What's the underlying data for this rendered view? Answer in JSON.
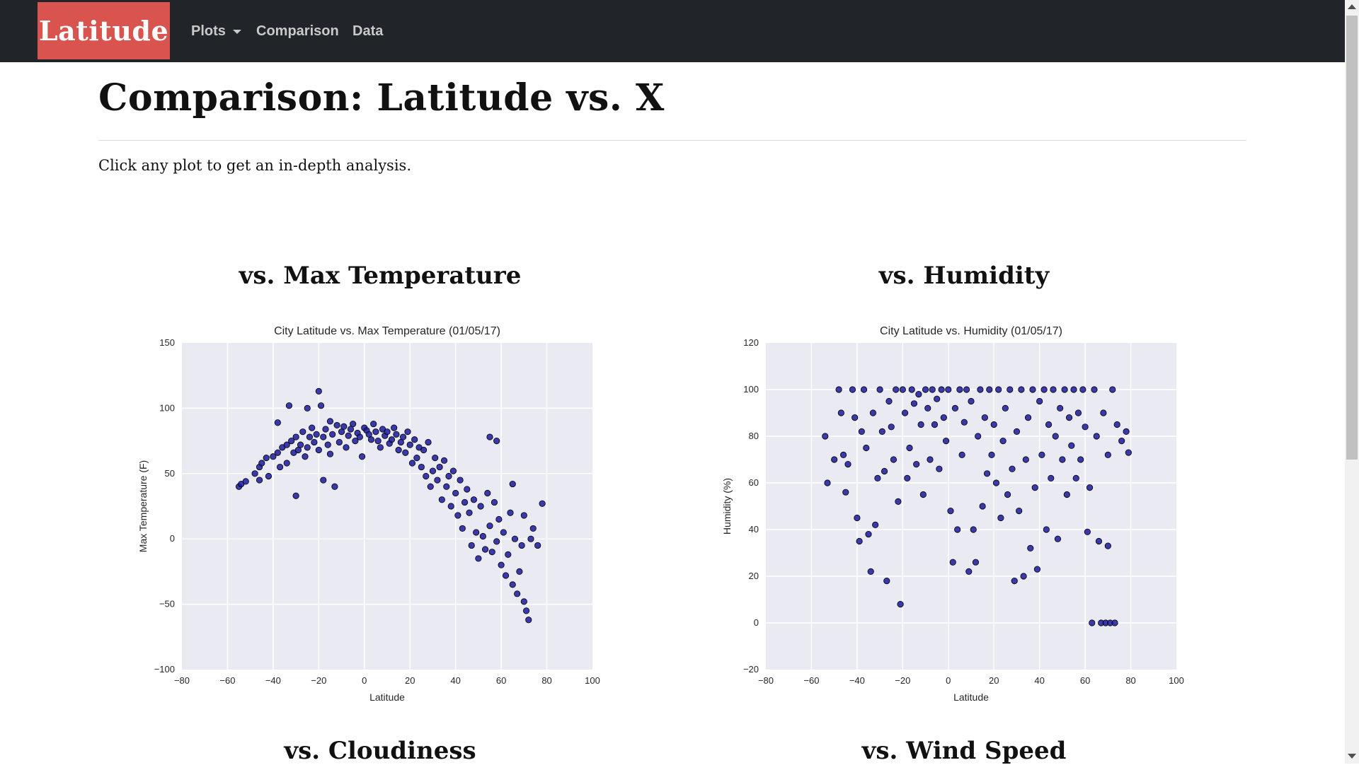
{
  "nav": {
    "brand": "Latitude",
    "items": [
      "Plots",
      "Comparison",
      "Data"
    ]
  },
  "page": {
    "title": "Comparison: Latitude vs. X",
    "intro": "Click any plot to get an in-depth analysis."
  },
  "headings": {
    "max_temp": "vs. Max Temperature",
    "humidity": "vs. Humidity",
    "cloudiness": "vs. Cloudiness",
    "wind_speed": "vs. Wind Speed"
  },
  "colors": {
    "navbar": "#212529",
    "brand": "#d9534f",
    "plot_bg": "#eaeaf2",
    "point": "#1a1aa0",
    "point_edge": "#000000"
  },
  "chart_data": [
    {
      "id": "temp",
      "type": "scatter",
      "title": "City Latitude vs. Max Temperature (01/05/17)",
      "xlabel": "Latitude",
      "ylabel": "Max Temperature (F)",
      "xlim": [
        -80,
        100
      ],
      "ylim": [
        -100,
        150
      ],
      "xticks": [
        -80,
        -60,
        -40,
        -20,
        0,
        20,
        40,
        60,
        80,
        100
      ],
      "yticks": [
        -100,
        -50,
        0,
        50,
        100,
        150
      ],
      "grid": true,
      "points": [
        [
          -55,
          40
        ],
        [
          -54,
          42
        ],
        [
          -52,
          44
        ],
        [
          -48,
          50
        ],
        [
          -46,
          55
        ],
        [
          -46,
          45
        ],
        [
          -45,
          58
        ],
        [
          -43,
          62
        ],
        [
          -42,
          48
        ],
        [
          -40,
          63
        ],
        [
          -38,
          66
        ],
        [
          -38,
          89
        ],
        [
          -37,
          55
        ],
        [
          -36,
          70
        ],
        [
          -34,
          72
        ],
        [
          -34,
          58
        ],
        [
          -33,
          102
        ],
        [
          -32,
          75
        ],
        [
          -31,
          66
        ],
        [
          -30,
          33
        ],
        [
          -30,
          78
        ],
        [
          -29,
          68
        ],
        [
          -28,
          72
        ],
        [
          -27,
          82
        ],
        [
          -26,
          63
        ],
        [
          -25,
          70
        ],
        [
          -25,
          100
        ],
        [
          -24,
          78
        ],
        [
          -23,
          85
        ],
        [
          -22,
          74
        ],
        [
          -21,
          80
        ],
        [
          -20,
          113
        ],
        [
          -20,
          68
        ],
        [
          -19,
          102
        ],
        [
          -18,
          45
        ],
        [
          -18,
          78
        ],
        [
          -17,
          84
        ],
        [
          -16,
          72
        ],
        [
          -15,
          90
        ],
        [
          -15,
          65
        ],
        [
          -14,
          80
        ],
        [
          -13,
          40
        ],
        [
          -12,
          87
        ],
        [
          -11,
          74
        ],
        [
          -10,
          82
        ],
        [
          -9,
          86
        ],
        [
          -8,
          70
        ],
        [
          -7,
          79
        ],
        [
          -6,
          84
        ],
        [
          -5,
          88
        ],
        [
          -4,
          75
        ],
        [
          -3,
          81
        ],
        [
          -2,
          78
        ],
        [
          -1,
          63
        ],
        [
          0,
          85
        ],
        [
          1,
          83
        ],
        [
          2,
          80
        ],
        [
          3,
          76
        ],
        [
          4,
          88
        ],
        [
          5,
          82
        ],
        [
          6,
          75
        ],
        [
          7,
          70
        ],
        [
          8,
          84
        ],
        [
          9,
          79
        ],
        [
          10,
          82
        ],
        [
          11,
          73
        ],
        [
          12,
          76
        ],
        [
          13,
          85
        ],
        [
          14,
          80
        ],
        [
          15,
          68
        ],
        [
          16,
          74
        ],
        [
          17,
          78
        ],
        [
          18,
          66
        ],
        [
          19,
          82
        ],
        [
          20,
          72
        ],
        [
          21,
          58
        ],
        [
          22,
          76
        ],
        [
          23,
          62
        ],
        [
          24,
          70
        ],
        [
          25,
          55
        ],
        [
          26,
          68
        ],
        [
          27,
          48
        ],
        [
          28,
          74
        ],
        [
          29,
          40
        ],
        [
          30,
          52
        ],
        [
          31,
          62
        ],
        [
          32,
          45
        ],
        [
          33,
          55
        ],
        [
          34,
          30
        ],
        [
          35,
          60
        ],
        [
          36,
          40
        ],
        [
          37,
          48
        ],
        [
          38,
          25
        ],
        [
          39,
          52
        ],
        [
          40,
          35
        ],
        [
          41,
          18
        ],
        [
          42,
          45
        ],
        [
          43,
          8
        ],
        [
          44,
          28
        ],
        [
          45,
          38
        ],
        [
          46,
          20
        ],
        [
          47,
          -5
        ],
        [
          48,
          30
        ],
        [
          49,
          5
        ],
        [
          50,
          -15
        ],
        [
          51,
          25
        ],
        [
          52,
          2
        ],
        [
          53,
          -8
        ],
        [
          54,
          35
        ],
        [
          55,
          10
        ],
        [
          55,
          78
        ],
        [
          56,
          -10
        ],
        [
          57,
          28
        ],
        [
          58,
          -2
        ],
        [
          58,
          75
        ],
        [
          59,
          15
        ],
        [
          60,
          -20
        ],
        [
          61,
          5
        ],
        [
          62,
          -28
        ],
        [
          63,
          -12
        ],
        [
          64,
          20
        ],
        [
          65,
          -35
        ],
        [
          65,
          42
        ],
        [
          66,
          0
        ],
        [
          67,
          -42
        ],
        [
          68,
          -25
        ],
        [
          69,
          -5
        ],
        [
          70,
          -48
        ],
        [
          70,
          18
        ],
        [
          71,
          -55
        ],
        [
          72,
          -62
        ],
        [
          73,
          0
        ],
        [
          74,
          8
        ],
        [
          76,
          -5
        ],
        [
          78,
          27
        ]
      ]
    },
    {
      "id": "humidity",
      "type": "scatter",
      "title": "City Latitude vs. Humidity (01/05/17)",
      "xlabel": "Latitude",
      "ylabel": "Humidity (%)",
      "xlim": [
        -80,
        100
      ],
      "ylim": [
        -20,
        120
      ],
      "xticks": [
        -80,
        -60,
        -40,
        -20,
        0,
        20,
        40,
        60,
        80,
        100
      ],
      "yticks": [
        -20,
        0,
        20,
        40,
        60,
        80,
        100,
        120
      ],
      "grid": true,
      "points": [
        [
          -54,
          80
        ],
        [
          -53,
          60
        ],
        [
          -50,
          70
        ],
        [
          -48,
          100
        ],
        [
          -47,
          90
        ],
        [
          -46,
          72
        ],
        [
          -45,
          56
        ],
        [
          -44,
          68
        ],
        [
          -42,
          100
        ],
        [
          -41,
          88
        ],
        [
          -40,
          45
        ],
        [
          -39,
          35
        ],
        [
          -38,
          82
        ],
        [
          -37,
          100
        ],
        [
          -36,
          75
        ],
        [
          -35,
          38
        ],
        [
          -34,
          22
        ],
        [
          -33,
          90
        ],
        [
          -32,
          42
        ],
        [
          -31,
          62
        ],
        [
          -30,
          100
        ],
        [
          -29,
          82
        ],
        [
          -28,
          65
        ],
        [
          -27,
          18
        ],
        [
          -26,
          95
        ],
        [
          -25,
          84
        ],
        [
          -24,
          70
        ],
        [
          -23,
          100
        ],
        [
          -22,
          52
        ],
        [
          -21,
          8
        ],
        [
          -20,
          100
        ],
        [
          -19,
          90
        ],
        [
          -18,
          62
        ],
        [
          -17,
          75
        ],
        [
          -16,
          100
        ],
        [
          -15,
          94
        ],
        [
          -14,
          68
        ],
        [
          -13,
          98
        ],
        [
          -12,
          85
        ],
        [
          -11,
          55
        ],
        [
          -10,
          100
        ],
        [
          -9,
          92
        ],
        [
          -8,
          70
        ],
        [
          -7,
          100
        ],
        [
          -6,
          85
        ],
        [
          -5,
          96
        ],
        [
          -4,
          66
        ],
        [
          -3,
          100
        ],
        [
          -2,
          88
        ],
        [
          -1,
          78
        ],
        [
          0,
          100
        ],
        [
          1,
          48
        ],
        [
          2,
          26
        ],
        [
          3,
          92
        ],
        [
          4,
          40
        ],
        [
          5,
          100
        ],
        [
          6,
          72
        ],
        [
          7,
          86
        ],
        [
          8,
          100
        ],
        [
          9,
          22
        ],
        [
          10,
          95
        ],
        [
          11,
          40
        ],
        [
          12,
          26
        ],
        [
          13,
          80
        ],
        [
          14,
          100
        ],
        [
          15,
          50
        ],
        [
          16,
          88
        ],
        [
          17,
          64
        ],
        [
          18,
          100
        ],
        [
          19,
          72
        ],
        [
          20,
          85
        ],
        [
          21,
          60
        ],
        [
          22,
          100
        ],
        [
          23,
          45
        ],
        [
          24,
          78
        ],
        [
          25,
          92
        ],
        [
          26,
          55
        ],
        [
          27,
          100
        ],
        [
          28,
          66
        ],
        [
          29,
          18
        ],
        [
          30,
          82
        ],
        [
          31,
          48
        ],
        [
          32,
          100
        ],
        [
          33,
          20
        ],
        [
          34,
          70
        ],
        [
          35,
          88
        ],
        [
          36,
          32
        ],
        [
          37,
          100
        ],
        [
          38,
          58
        ],
        [
          39,
          23
        ],
        [
          40,
          95
        ],
        [
          41,
          72
        ],
        [
          42,
          100
        ],
        [
          43,
          40
        ],
        [
          44,
          85
        ],
        [
          45,
          62
        ],
        [
          46,
          100
        ],
        [
          47,
          80
        ],
        [
          48,
          36
        ],
        [
          49,
          92
        ],
        [
          50,
          70
        ],
        [
          51,
          100
        ],
        [
          52,
          55
        ],
        [
          53,
          88
        ],
        [
          54,
          76
        ],
        [
          55,
          100
        ],
        [
          56,
          62
        ],
        [
          57,
          90
        ],
        [
          58,
          70
        ],
        [
          59,
          100
        ],
        [
          60,
          84
        ],
        [
          61,
          39
        ],
        [
          62,
          58
        ],
        [
          63,
          0
        ],
        [
          64,
          100
        ],
        [
          65,
          80
        ],
        [
          66,
          35
        ],
        [
          67,
          0
        ],
        [
          68,
          90
        ],
        [
          69,
          0
        ],
        [
          70,
          72
        ],
        [
          70,
          33
        ],
        [
          71,
          0
        ],
        [
          72,
          100
        ],
        [
          73,
          0
        ],
        [
          74,
          85
        ],
        [
          76,
          78
        ],
        [
          78,
          82
        ],
        [
          79,
          73
        ]
      ]
    }
  ]
}
